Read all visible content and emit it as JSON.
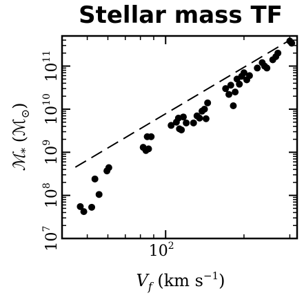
{
  "chart_data": {
    "type": "scatter",
    "title": "Stellar mass TF",
    "xlabel": {
      "main": "V",
      "sub": "f",
      "unit": " (km s",
      "exp": "−1",
      "close": ")"
    },
    "ylabel": {
      "main": "ℳ",
      "sub": "*",
      "unit": " (ℳ",
      "sub2": "⊙",
      "close": ")"
    },
    "x_scale": "log",
    "y_scale": "log",
    "xlim": [
      40,
      320
    ],
    "ylim": [
      10000000,
      500000000000
    ],
    "x_ticks": [
      {
        "value": 100,
        "base": "10",
        "exp": "2"
      }
    ],
    "y_ticks": [
      {
        "value": 10000000,
        "base": "10",
        "exp": "7"
      },
      {
        "value": 100000000,
        "base": "10",
        "exp": "8"
      },
      {
        "value": 1000000000,
        "base": "10",
        "exp": "9"
      },
      {
        "value": 10000000000,
        "base": "10",
        "exp": "10"
      },
      {
        "value": 100000000000,
        "base": "10",
        "exp": "11"
      }
    ],
    "points": [
      [
        47,
        55000000
      ],
      [
        48.5,
        42000000
      ],
      [
        52,
        53000000
      ],
      [
        53.5,
        240000000
      ],
      [
        55.5,
        105000000
      ],
      [
        59.5,
        370000000
      ],
      [
        60.5,
        440000000
      ],
      [
        82,
        1300000000
      ],
      [
        84,
        1100000000
      ],
      [
        85,
        2300000000
      ],
      [
        86,
        1200000000
      ],
      [
        88,
        2300000000
      ],
      [
        105,
        4200000000
      ],
      [
        110,
        5000000000
      ],
      [
        112,
        6200000000
      ],
      [
        113,
        3500000000
      ],
      [
        115,
        3300000000
      ],
      [
        117,
        6600000000
      ],
      [
        120,
        4800000000
      ],
      [
        128,
        4800000000
      ],
      [
        132,
        7000000000
      ],
      [
        135,
        6200000000
      ],
      [
        138,
        9000000000
      ],
      [
        141,
        10000000000
      ],
      [
        143,
        6000000000
      ],
      [
        145,
        14000000000
      ],
      [
        170,
        30000000000
      ],
      [
        175,
        22000000000
      ],
      [
        178,
        36000000000
      ],
      [
        182,
        12000000000
      ],
      [
        185,
        25000000000
      ],
      [
        188,
        50000000000
      ],
      [
        192,
        38000000000
      ],
      [
        196,
        58000000000
      ],
      [
        200,
        70000000000
      ],
      [
        205,
        48000000000
      ],
      [
        210,
        60000000000
      ],
      [
        225,
        90000000000
      ],
      [
        235,
        120000000000
      ],
      [
        240,
        100000000000
      ],
      [
        245,
        90000000000
      ],
      [
        258,
        140000000000
      ],
      [
        265,
        165000000000
      ],
      [
        270,
        200000000000
      ],
      [
        300,
        380000000000
      ],
      [
        305,
        340000000000
      ]
    ],
    "fit_line": {
      "style": "dashed",
      "x": [
        45,
        300
      ],
      "y": [
        450000000,
        400000000000
      ]
    },
    "grid": false,
    "legend": "none"
  }
}
